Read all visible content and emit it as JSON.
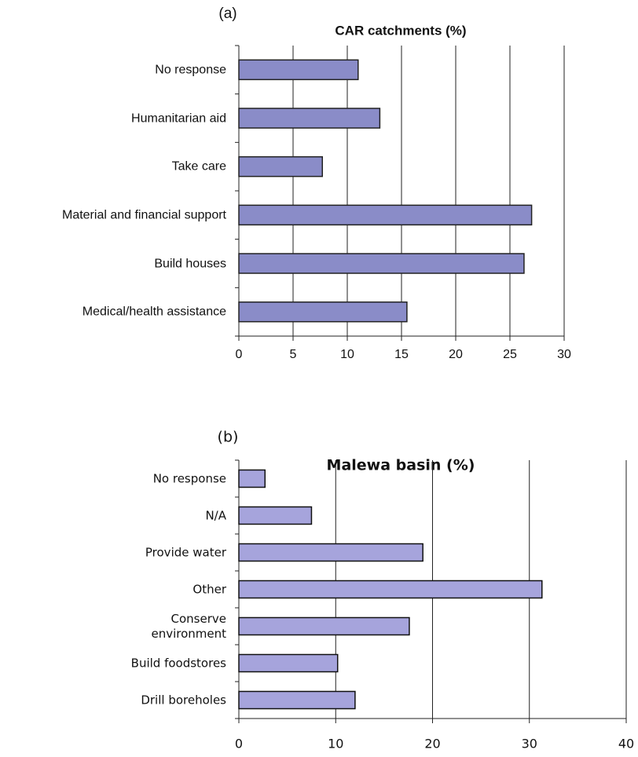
{
  "chart_data": [
    {
      "type": "bar",
      "orientation": "horizontal",
      "panel_label": "(a)",
      "title": "CAR catchments (%)",
      "categories": [
        "No response",
        "Humanitarian aid",
        "Take care",
        "Material and financial support",
        "Build houses",
        "Medical/health assistance"
      ],
      "values": [
        11,
        13,
        7.7,
        27,
        26.3,
        15.5
      ],
      "color": "#8a8cc8",
      "xlim": [
        0,
        30
      ],
      "xticks": [
        0,
        5,
        10,
        15,
        20,
        25,
        30
      ],
      "grid": true
    },
    {
      "type": "bar",
      "orientation": "horizontal",
      "panel_label": "(b)",
      "title": "Malewa basin (%)",
      "categories": [
        "No response",
        "N/A",
        "Provide water",
        "Other",
        "Conserve\nenvironment",
        "Build foodstores",
        "Drill boreholes"
      ],
      "values": [
        2.7,
        7.5,
        19,
        31.3,
        17.6,
        10.2,
        12
      ],
      "color": "#a6a4dc",
      "xlim": [
        0,
        40
      ],
      "xticks": [
        0,
        10,
        20,
        30,
        40
      ],
      "grid": true
    }
  ]
}
